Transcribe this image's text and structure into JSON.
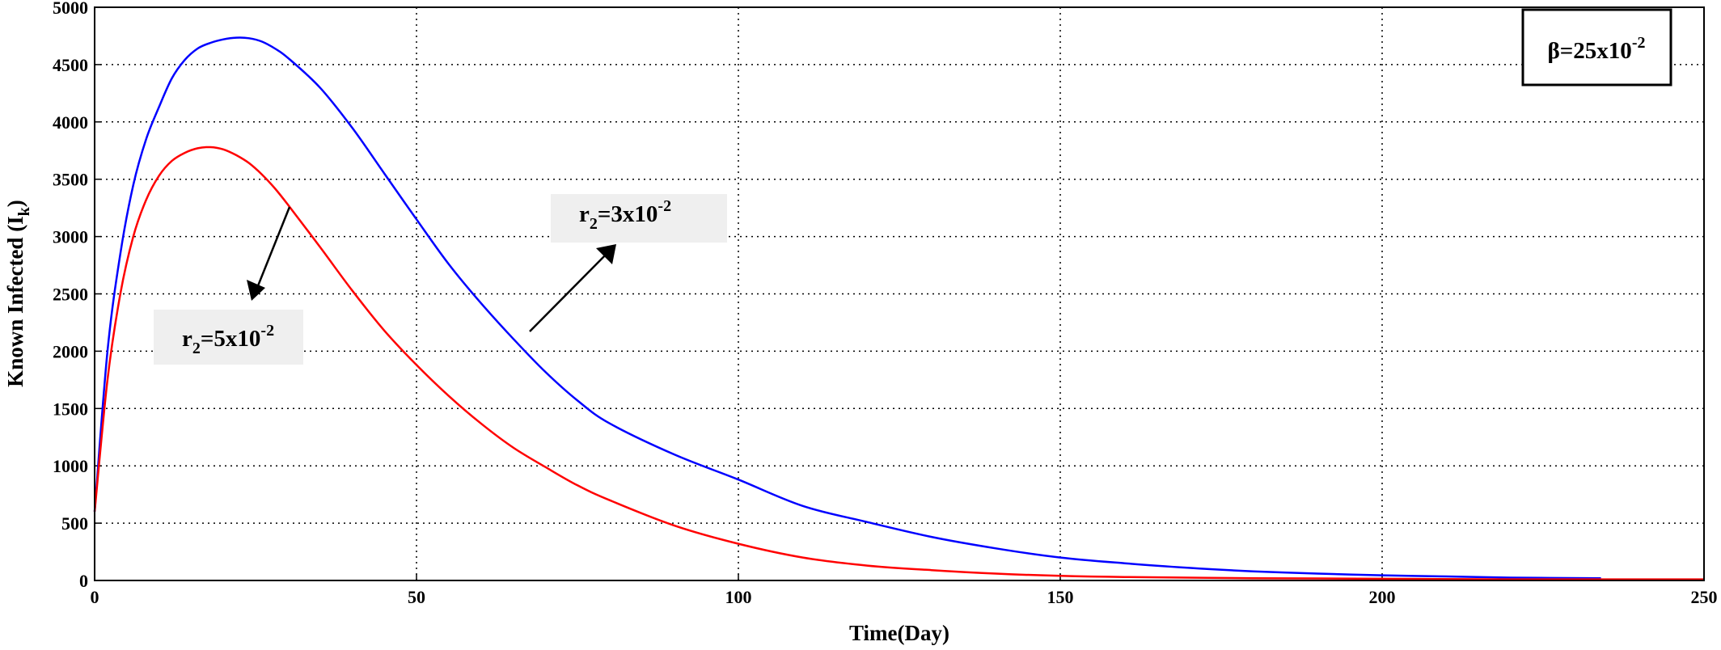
{
  "chart_data": {
    "type": "line",
    "title": "",
    "xlabel": "Time(Day)",
    "ylabel": {
      "main": "Known Infected (I",
      "sub": "k",
      "close": ")"
    },
    "xlim": [
      0,
      250
    ],
    "ylim": [
      0,
      5000
    ],
    "xticks": [
      0,
      50,
      100,
      150,
      200,
      250
    ],
    "yticks": [
      0,
      500,
      1000,
      1500,
      2000,
      2500,
      3000,
      3500,
      4000,
      4500,
      5000
    ],
    "grid": true,
    "legend": "none",
    "parameter_box": {
      "text": "β=25x10",
      "sup": "-2"
    },
    "series": [
      {
        "label": {
          "r": "r",
          "sub": "2",
          "eq": "=3x10",
          "sup": "-2"
        },
        "color": "#0000ff",
        "x": [
          0,
          2,
          4,
          6,
          8,
          10,
          12,
          14,
          16,
          18,
          20,
          22,
          24,
          26,
          28,
          30,
          35,
          40,
          45,
          50,
          55,
          60,
          65,
          70,
          75,
          80,
          90,
          100,
          110,
          120,
          130,
          140,
          150,
          160,
          170,
          180,
          190,
          200,
          210,
          220,
          234
        ],
        "y": [
          600,
          2000,
          2850,
          3450,
          3850,
          4130,
          4380,
          4540,
          4640,
          4690,
          4720,
          4735,
          4730,
          4700,
          4640,
          4560,
          4300,
          3950,
          3550,
          3150,
          2760,
          2420,
          2110,
          1820,
          1570,
          1370,
          1100,
          880,
          650,
          510,
          380,
          280,
          200,
          150,
          110,
          80,
          60,
          45,
          35,
          25,
          20
        ]
      },
      {
        "label": {
          "r": "r",
          "sub": "2",
          "eq": "=5x10",
          "sup": "-2"
        },
        "color": "#ff0000",
        "x": [
          0,
          2,
          4,
          6,
          8,
          10,
          12,
          14,
          16,
          18,
          20,
          22,
          24,
          26,
          28,
          30,
          35,
          40,
          45,
          50,
          55,
          60,
          65,
          70,
          75,
          80,
          90,
          100,
          110,
          120,
          130,
          140,
          150,
          160,
          180,
          200,
          220,
          250
        ],
        "y": [
          600,
          1750,
          2500,
          3000,
          3320,
          3530,
          3660,
          3730,
          3770,
          3780,
          3760,
          3710,
          3640,
          3540,
          3420,
          3280,
          2910,
          2530,
          2180,
          1880,
          1610,
          1370,
          1160,
          990,
          830,
          700,
          480,
          320,
          200,
          130,
          90,
          60,
          40,
          30,
          20,
          15,
          10,
          10
        ]
      }
    ]
  }
}
